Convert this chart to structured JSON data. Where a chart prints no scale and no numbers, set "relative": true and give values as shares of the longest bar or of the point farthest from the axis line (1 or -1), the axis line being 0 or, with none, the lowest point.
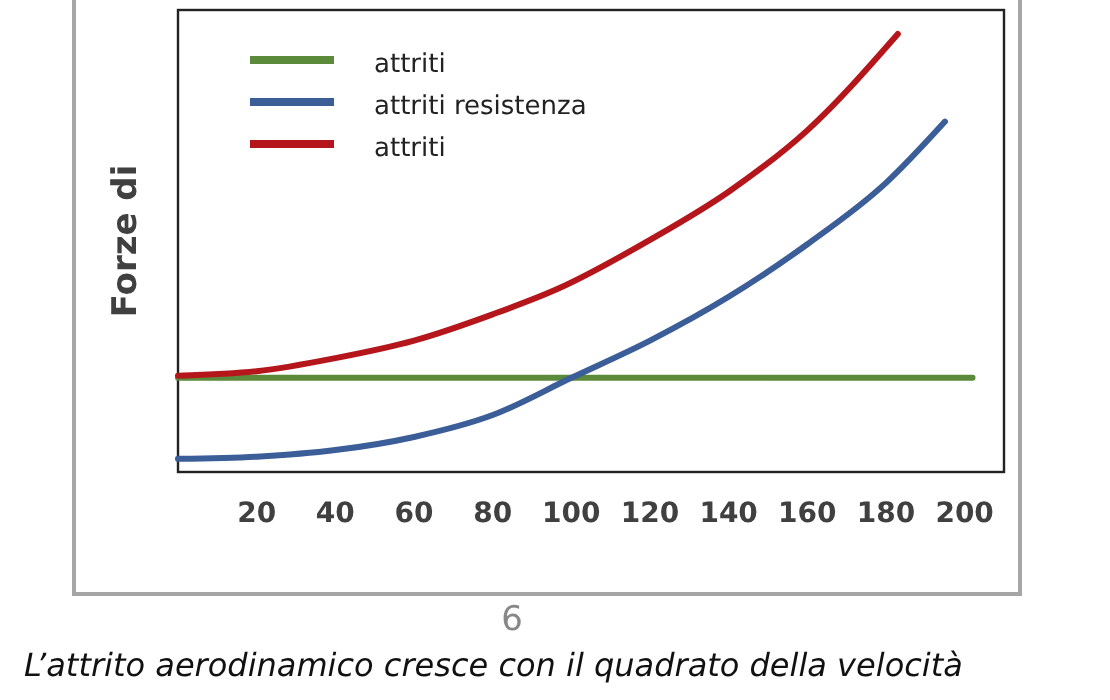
{
  "chart_data": {
    "type": "line",
    "ylabel": "Forze di",
    "relative": true,
    "xlim": [
      0,
      210
    ],
    "xticks": [
      20,
      40,
      60,
      80,
      100,
      120,
      140,
      160,
      180,
      200
    ],
    "legend": "top left",
    "line_style": "solid",
    "series": [
      {
        "name": "attriti",
        "color": "#5b8a3a",
        "x": [
          0,
          202
        ],
        "values": [
          0.215,
          0.215
        ]
      },
      {
        "name": "attriti resistenza",
        "color": "#3b5e98",
        "x": [
          0,
          20,
          40,
          60,
          80,
          100,
          120,
          140,
          160,
          180,
          195
        ],
        "values": [
          0.03,
          0.035,
          0.05,
          0.08,
          0.13,
          0.215,
          0.3,
          0.4,
          0.52,
          0.66,
          0.8
        ]
      },
      {
        "name": "attriti",
        "color": "#b5161b",
        "x": [
          0,
          20,
          40,
          60,
          80,
          97,
          120,
          140,
          160,
          183
        ],
        "values": [
          0.22,
          0.23,
          0.26,
          0.3,
          0.36,
          0.42,
          0.53,
          0.64,
          0.78,
          1.0
        ]
      }
    ],
    "annotations": [
      "6",
      "L’attrito aerodinamico cresce con il quadrato della velocità"
    ]
  }
}
